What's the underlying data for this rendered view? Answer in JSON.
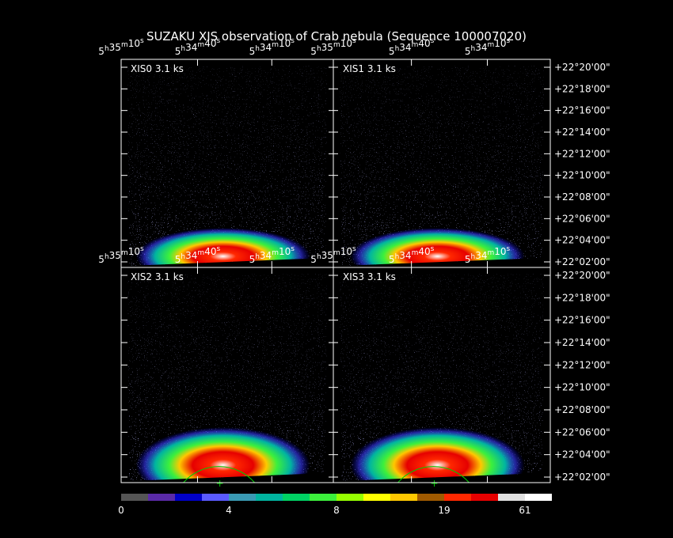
{
  "title": "SUZAKU XIS observation of Crab nebula  (Sequence 100007020)",
  "ra_labels": [
    "5h35m10s",
    "5h34m40s",
    "5h34m10s"
  ],
  "dec_labels": [
    "+22°20'00\"",
    "+22°18'00\"",
    "+22°16'00\"",
    "+22°14'00\"",
    "+22°12'00\"",
    "+22°10'00\"",
    "+22°08'00\"",
    "+22°06'00\"",
    "+22°04'00\"",
    "+22°02'00\""
  ],
  "panels": [
    {
      "label": "XIS0 3.1 ks"
    },
    {
      "label": "XIS1 3.1 ks"
    },
    {
      "label": "XIS2 3.1 ks"
    },
    {
      "label": "XIS3 3.1 ks"
    }
  ],
  "colorbar": {
    "colors": [
      "#555555",
      "#5a2aa8",
      "#0000c8",
      "#5a5aff",
      "#3a9ab4",
      "#00b4a0",
      "#00d264",
      "#3cf03c",
      "#96ff00",
      "#ffff00",
      "#ffc800",
      "#a05a00",
      "#ff2800",
      "#e60000",
      "#e0e0e0",
      "#ffffff"
    ],
    "labels": [
      0,
      4,
      8,
      19,
      61
    ]
  }
}
